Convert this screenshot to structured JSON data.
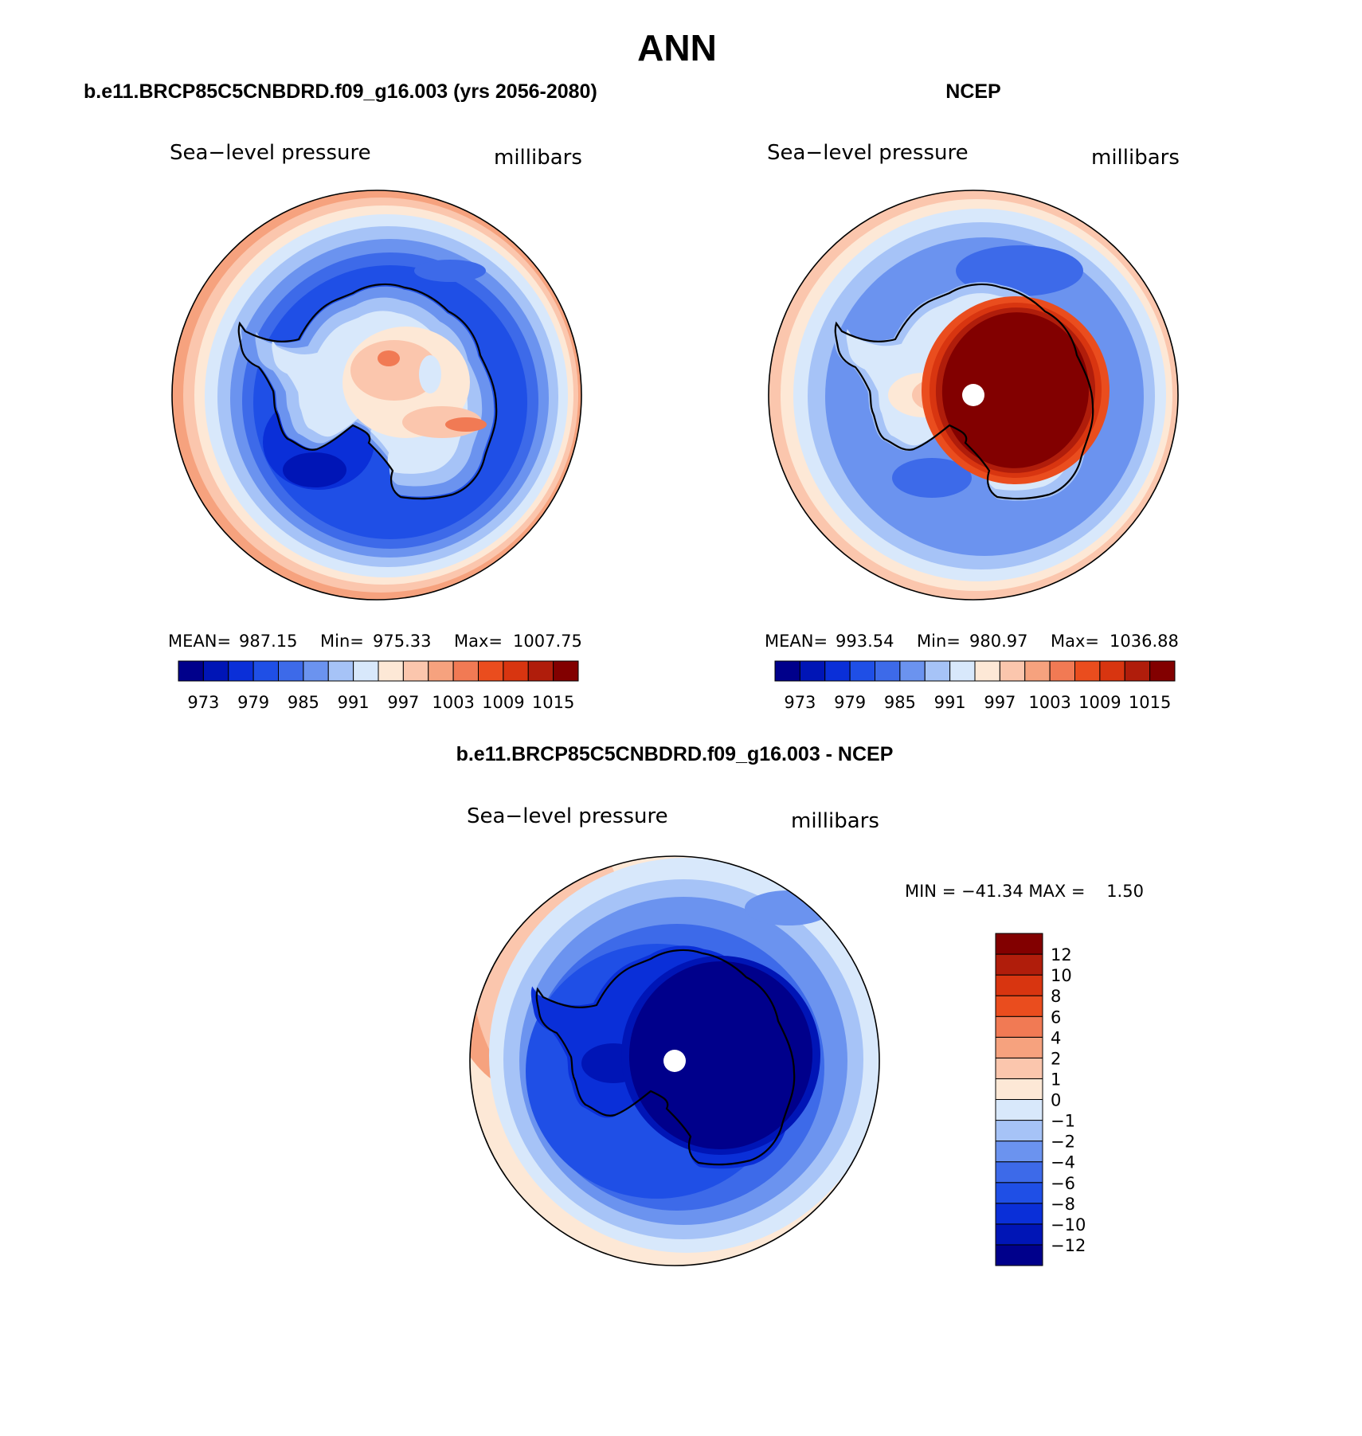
{
  "page_title": "ANN",
  "colors": {
    "abs_scale": [
      "#00008b",
      "#0015b6",
      "#0a2fd8",
      "#1f4fe6",
      "#3d6ae9",
      "#6b93ef",
      "#a6c3f7",
      "#d8e8fb",
      "#fde8d6",
      "#fbc6ad",
      "#f6a27e",
      "#f17a54",
      "#ea4d1e",
      "#d83510",
      "#b01d0b",
      "#820000"
    ],
    "diff_scale": [
      "#00008b",
      "#0015b6",
      "#0a2fd8",
      "#1f4fe6",
      "#3d6ae9",
      "#6b93ef",
      "#a6c3f7",
      "#d8e8fb",
      "#fde8d6",
      "#fbc6ad",
      "#f6a27e",
      "#f17a54",
      "#ea4d1e",
      "#d83510",
      "#b01d0b",
      "#820000"
    ]
  },
  "panels": [
    {
      "id": "model",
      "title": "b.e11.BRCP85C5CNBDRD.f09_g16.003 (yrs 2056-2080)",
      "variable": "Sea−level pressure",
      "units": "millibars",
      "stats": {
        "mean_label": "MEAN=",
        "mean": "987.15",
        "min_label": "Min=",
        "min": "975.33",
        "max_label": "Max=",
        "max": "1007.75"
      },
      "colorbar_ticks": [
        "973",
        "979",
        "985",
        "991",
        "997",
        "1003",
        "1009",
        "1015"
      ]
    },
    {
      "id": "obs",
      "title": "NCEP",
      "variable": "Sea−level pressure",
      "units": "millibars",
      "stats": {
        "mean_label": "MEAN=",
        "mean": "993.54",
        "min_label": "Min=",
        "min": "980.97",
        "max_label": "Max=",
        "max": "1036.88"
      },
      "colorbar_ticks": [
        "973",
        "979",
        "985",
        "991",
        "997",
        "1003",
        "1009",
        "1015"
      ]
    },
    {
      "id": "diff",
      "title": "b.e11.BRCP85C5CNBDRD.f09_g16.003 - NCEP",
      "variable": "Sea−level pressure",
      "units": "millibars",
      "stats_text": "MIN = −41.34 MAX =    1.50",
      "colorbar_ticks": [
        "12",
        "10",
        "8",
        "6",
        "4",
        "2",
        "1",
        "0",
        "−1",
        "−2",
        "−4",
        "−6",
        "−8",
        "−10",
        "−12"
      ]
    }
  ]
}
